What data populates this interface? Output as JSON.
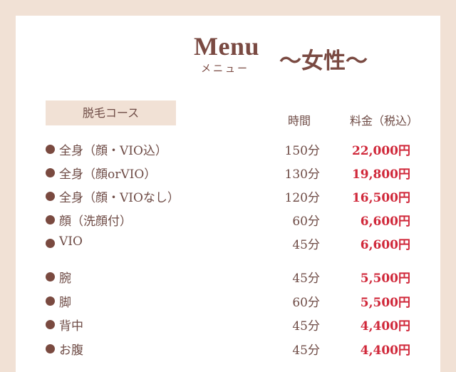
{
  "header": {
    "title": "Menu",
    "subtitle": "メニュー",
    "category": "〜女性〜"
  },
  "table": {
    "course_label": "脱毛コース",
    "col_time": "時間",
    "col_price": "料金（税込）",
    "rows": [
      {
        "name": "全身（顔・VIO込）",
        "time": "150分",
        "price": "22,000円"
      },
      {
        "name": "全身（顔orVIO）",
        "time": "130分",
        "price": "19,800円"
      },
      {
        "name": "全身（顔・VIOなし）",
        "time": "120分",
        "price": "16,500円"
      },
      {
        "name": "顔（洗顔付）",
        "time": "60分",
        "price": "6,600円"
      },
      {
        "name": "VIO",
        "time": "45分",
        "price": "6,600円"
      },
      {
        "name": "腕",
        "time": "45分",
        "price": "5,500円"
      },
      {
        "name": "脚",
        "time": "60分",
        "price": "5,500円"
      },
      {
        "name": "背中",
        "time": "45分",
        "price": "4,400円"
      },
      {
        "name": "お腹",
        "time": "45分",
        "price": "4,400円"
      }
    ]
  },
  "colors": {
    "background": "#f1e1d5",
    "text": "#6e4b45",
    "price": "#d0283a",
    "bullet": "#7a4a40"
  }
}
